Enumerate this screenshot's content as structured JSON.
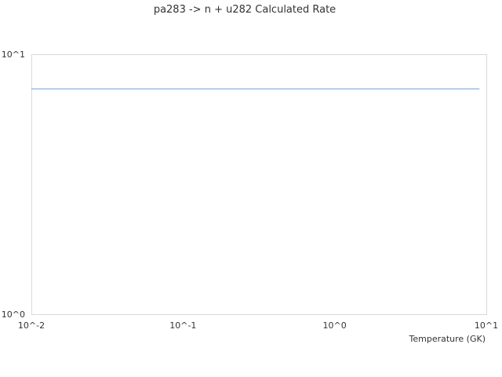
{
  "chart_data": {
    "type": "line",
    "title": "pa283 -> n + u282 Calculated Rate",
    "xlabel": "Temperature (GK)",
    "ylabel": "",
    "xscale": "log",
    "yscale": "log",
    "xlim": [
      0.01,
      10
    ],
    "ylim": [
      1,
      10
    ],
    "xticks": [
      {
        "value": 0.01,
        "label": "10^-2"
      },
      {
        "value": 0.1,
        "label": "10^-1"
      },
      {
        "value": 1,
        "label": "10^0"
      },
      {
        "value": 10,
        "label": "10^1"
      }
    ],
    "yticks": [
      {
        "value": 1,
        "label": "10^0"
      },
      {
        "value": 10,
        "label": "10^1"
      }
    ],
    "grid": false,
    "series": [
      {
        "color": "#6a9fd8",
        "x": [
          0.01,
          9
        ],
        "y": [
          7.36,
          7.36
        ]
      }
    ]
  }
}
